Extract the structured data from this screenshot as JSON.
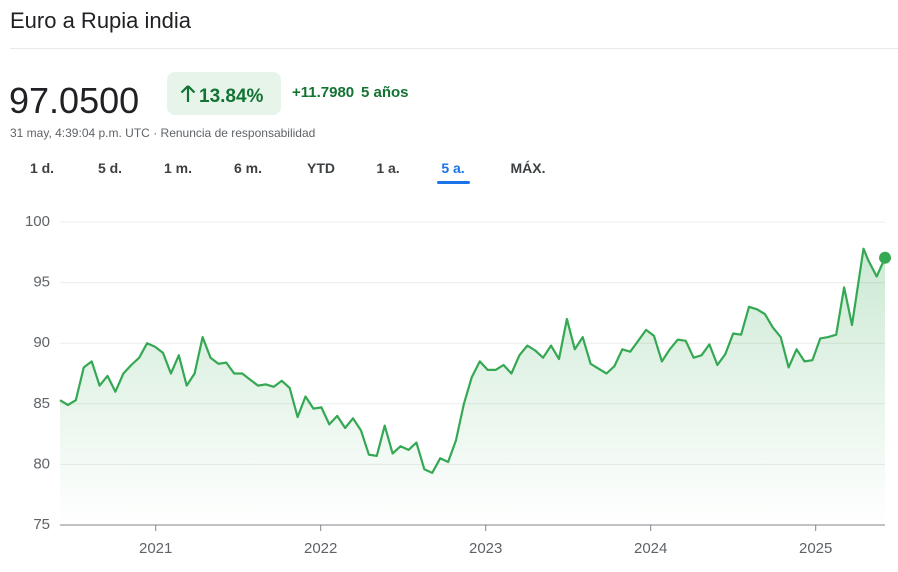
{
  "header": {
    "title": "Euro a Rupia india",
    "price": "97.0500",
    "change_pct": "13.84%",
    "change_abs": "+11.7980",
    "period": "5 años",
    "timestamp": "31 may, 4:39:04 p.m. UTC",
    "separator": "·",
    "disclaimer": "Renuncia de responsabilidad"
  },
  "tabs": {
    "items": [
      "1 d.",
      "5 d.",
      "1 m.",
      "6 m.",
      "YTD",
      "1 a.",
      "5 a.",
      "MÁX."
    ],
    "active": 6
  },
  "chart_data": {
    "type": "line",
    "color": "#34a853",
    "x": [
      2020.42,
      2020.468,
      2020.516,
      2020.564,
      2020.612,
      2020.66,
      2020.708,
      2020.756,
      2020.804,
      2020.852,
      2020.9,
      2020.948,
      2020.996,
      2021.044,
      2021.092,
      2021.14,
      2021.188,
      2021.236,
      2021.284,
      2021.332,
      2021.38,
      2021.428,
      2021.476,
      2021.524,
      2021.572,
      2021.62,
      2021.668,
      2021.716,
      2021.764,
      2021.812,
      2021.86,
      2021.908,
      2021.956,
      2022.004,
      2022.052,
      2022.1,
      2022.148,
      2022.196,
      2022.244,
      2022.292,
      2022.34,
      2022.388,
      2022.436,
      2022.484,
      2022.532,
      2022.58,
      2022.628,
      2022.676,
      2022.724,
      2022.772,
      2022.82,
      2022.868,
      2022.916,
      2022.964,
      2023.012,
      2023.06,
      2023.108,
      2023.156,
      2023.204,
      2023.252,
      2023.3,
      2023.348,
      2023.396,
      2023.444,
      2023.492,
      2023.54,
      2023.588,
      2023.636,
      2023.684,
      2023.732,
      2023.78,
      2023.828,
      2023.876,
      2023.924,
      2023.972,
      2024.02,
      2024.068,
      2024.116,
      2024.164,
      2024.212,
      2024.26,
      2024.308,
      2024.356,
      2024.404,
      2024.452,
      2024.5,
      2024.548,
      2024.596,
      2024.644,
      2024.692,
      2024.74,
      2024.788,
      2024.836,
      2024.884,
      2024.932,
      2024.98,
      2025.028,
      2025.076,
      2025.124,
      2025.172,
      2025.22,
      2025.29,
      2025.32,
      2025.37,
      2025.42
    ],
    "values": [
      85.3,
      84.9,
      85.3,
      88.0,
      88.5,
      86.5,
      87.3,
      86.0,
      87.5,
      88.2,
      88.8,
      90.0,
      89.7,
      89.2,
      87.5,
      89.0,
      86.5,
      87.5,
      90.5,
      88.8,
      88.3,
      88.4,
      87.5,
      87.5,
      87.0,
      86.5,
      86.6,
      86.4,
      86.9,
      86.3,
      83.9,
      85.6,
      84.6,
      84.7,
      83.3,
      84.0,
      83.0,
      83.8,
      82.8,
      80.8,
      80.7,
      83.2,
      80.9,
      81.5,
      81.2,
      81.8,
      79.6,
      79.3,
      80.5,
      80.2,
      82.0,
      85.0,
      87.2,
      88.5,
      87.8,
      87.8,
      88.2,
      87.5,
      89.0,
      89.8,
      89.4,
      88.8,
      89.8,
      88.7,
      92.0,
      89.5,
      90.5,
      88.3,
      87.9,
      87.5,
      88.1,
      89.5,
      89.3,
      90.2,
      91.1,
      90.6,
      88.5,
      89.5,
      90.3,
      90.2,
      88.8,
      89.0,
      89.9,
      88.2,
      89.1,
      90.8,
      90.7,
      93.0,
      92.8,
      92.4,
      91.3,
      90.5,
      88.0,
      89.5,
      88.5,
      88.6,
      90.4,
      90.5,
      90.7,
      94.6,
      91.5,
      97.8,
      96.8,
      95.5,
      97.05
    ],
    "xlim": [
      2020.42,
      2025.42
    ],
    "xticks": [
      2021,
      2022,
      2023,
      2024,
      2025
    ],
    "ylim": [
      75,
      100
    ],
    "yticks": [
      75,
      80,
      85,
      90,
      95,
      100
    ],
    "grid": true
  }
}
